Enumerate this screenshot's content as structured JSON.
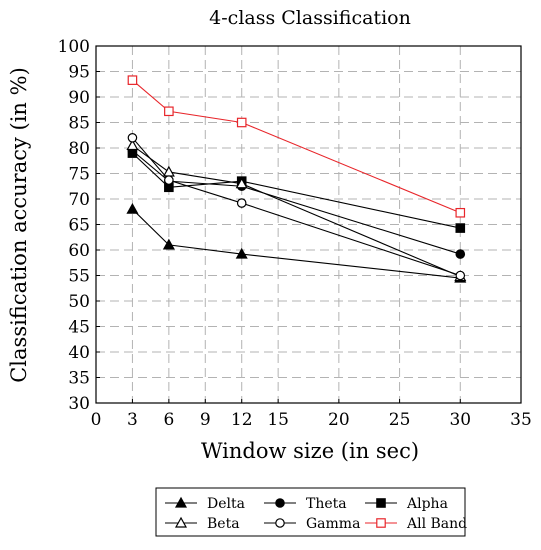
{
  "chart_data": {
    "type": "line",
    "title": "4-class Classification",
    "xlabel": "Window size (in sec)",
    "ylabel": "Classification accuracy (in %)",
    "xlim": [
      0,
      35
    ],
    "ylim": [
      30,
      100
    ],
    "xticks": [
      0,
      3,
      6,
      9,
      12,
      15,
      20,
      25,
      30,
      35
    ],
    "yticks": [
      30,
      35,
      40,
      45,
      50,
      55,
      60,
      65,
      70,
      75,
      80,
      85,
      90,
      95,
      100
    ],
    "grid": true,
    "legend_position": "bottom",
    "x": [
      3,
      6,
      12,
      30
    ],
    "series": [
      {
        "name": "Delta",
        "values": [
          68,
          61,
          59.2,
          54.5
        ],
        "marker": "triangle-filled",
        "color": "#000000"
      },
      {
        "name": "Theta",
        "values": [
          79.5,
          73.5,
          72.5,
          59.2
        ],
        "marker": "circle-filled",
        "color": "#000000"
      },
      {
        "name": "Alpha",
        "values": [
          79,
          72.3,
          73.5,
          64.3
        ],
        "marker": "square-filled",
        "color": "#000000"
      },
      {
        "name": "Beta",
        "values": [
          80.5,
          75.3,
          73,
          54.8
        ],
        "marker": "triangle-open",
        "color": "#000000"
      },
      {
        "name": "Gamma",
        "values": [
          82,
          73.7,
          69.2,
          55
        ],
        "marker": "circle-open",
        "color": "#000000"
      },
      {
        "name": "All Band",
        "values": [
          93.3,
          87.2,
          85,
          67.3
        ],
        "marker": "square-open",
        "color": "#e8262b"
      }
    ]
  }
}
